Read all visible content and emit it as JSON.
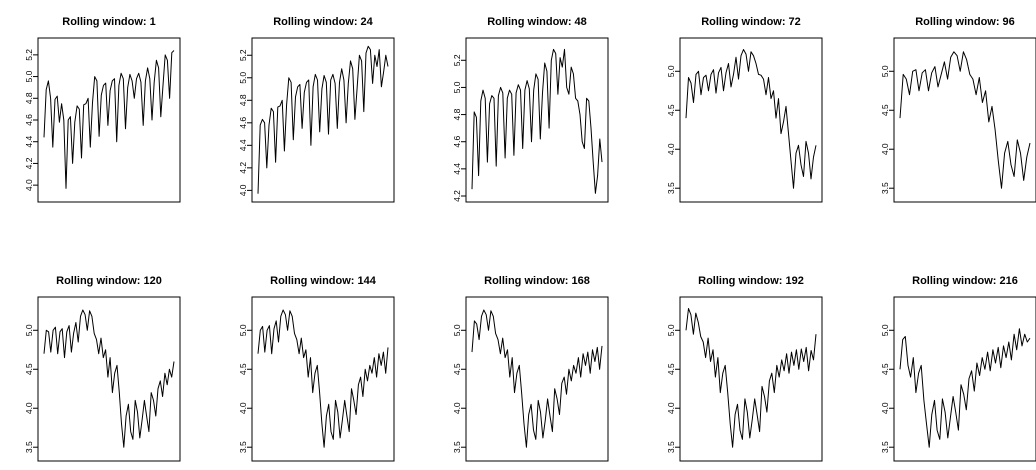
{
  "chart_data": [
    {
      "type": "line",
      "title": "Rolling window: 1",
      "ylim": [
        3.9,
        5.3
      ],
      "y_ticks": [
        4.0,
        4.2,
        4.4,
        4.6,
        4.8,
        5.0,
        5.2
      ],
      "y_tick_labels": [
        "4.0",
        "4.2",
        "4.4",
        "4.6",
        "4.8",
        "5.0",
        "5.2"
      ],
      "grid": false,
      "values": [
        4.44,
        4.88,
        4.96,
        4.8,
        4.35,
        4.79,
        4.82,
        4.58,
        4.75,
        4.6,
        3.97,
        4.6,
        4.63,
        4.2,
        4.58,
        4.73,
        4.7,
        4.25,
        4.74,
        4.75,
        4.8,
        4.35,
        4.76,
        5.0,
        4.96,
        4.45,
        4.83,
        4.92,
        4.94,
        4.55,
        4.87,
        4.96,
        4.98,
        4.4,
        4.92,
        5.03,
        4.98,
        4.52,
        4.9,
        5.02,
        4.96,
        4.8,
        4.98,
        5.03,
        4.95,
        4.55,
        4.96,
        5.08,
        4.98,
        4.6,
        4.95,
        5.15,
        5.08,
        4.63,
        4.92,
        5.2,
        5.15,
        4.8,
        5.22,
        5.24
      ]
    },
    {
      "type": "line",
      "title": "Rolling window: 24",
      "ylim": [
        3.95,
        5.3
      ],
      "y_ticks": [
        4.0,
        4.2,
        4.4,
        4.6,
        4.8,
        5.0,
        5.2
      ],
      "y_tick_labels": [
        "4.0",
        "4.2",
        "4.4",
        "4.6",
        "4.8",
        "5.0",
        "5.2"
      ],
      "grid": false,
      "values": [
        3.97,
        4.58,
        4.63,
        4.6,
        4.2,
        4.58,
        4.73,
        4.7,
        4.25,
        4.74,
        4.75,
        4.8,
        4.35,
        4.76,
        5.0,
        4.96,
        4.45,
        4.83,
        4.92,
        4.94,
        4.55,
        4.87,
        4.96,
        4.98,
        4.4,
        4.92,
        5.03,
        4.98,
        4.52,
        4.9,
        5.02,
        4.96,
        4.5,
        4.98,
        5.03,
        4.95,
        4.55,
        4.96,
        5.08,
        4.98,
        4.6,
        4.95,
        5.15,
        5.08,
        4.63,
        4.92,
        5.2,
        5.15,
        4.7,
        5.22,
        5.28,
        5.25,
        4.95,
        5.2,
        5.1,
        5.25,
        4.92,
        5.05,
        5.2,
        5.1
      ]
    },
    {
      "type": "line",
      "title": "Rolling window: 48",
      "ylim": [
        4.2,
        5.32
      ],
      "y_ticks": [
        4.2,
        4.4,
        4.6,
        4.8,
        5.0,
        5.2
      ],
      "y_tick_labels": [
        "4.2",
        "4.4",
        "4.6",
        "4.8",
        "5.0",
        "5.2"
      ],
      "grid": false,
      "values": [
        4.25,
        4.82,
        4.78,
        4.35,
        4.9,
        4.98,
        4.92,
        4.45,
        4.88,
        4.94,
        4.92,
        4.42,
        4.94,
        5.0,
        4.96,
        4.48,
        4.92,
        4.98,
        4.95,
        4.5,
        4.96,
        5.02,
        4.98,
        4.55,
        4.98,
        5.05,
        4.99,
        4.6,
        4.98,
        5.1,
        5.06,
        4.62,
        4.96,
        5.18,
        5.12,
        4.7,
        5.2,
        5.28,
        5.25,
        4.95,
        5.22,
        5.15,
        5.28,
        5.0,
        4.95,
        5.15,
        5.1,
        4.92,
        4.9,
        4.8,
        4.6,
        4.55,
        4.92,
        4.9,
        4.7,
        4.45,
        4.22,
        4.35,
        4.62,
        4.45
      ]
    },
    {
      "type": "line",
      "title": "Rolling window: 72",
      "ylim": [
        3.4,
        5.35
      ],
      "y_ticks": [
        3.5,
        4.0,
        4.5,
        5.0
      ],
      "y_tick_labels": [
        "3.5",
        "4.0",
        "4.5",
        "5.0"
      ],
      "grid": false,
      "values": [
        4.4,
        4.92,
        4.85,
        4.6,
        4.96,
        5.0,
        4.7,
        4.92,
        4.95,
        4.75,
        4.96,
        5.02,
        4.72,
        4.98,
        5.05,
        4.75,
        4.98,
        5.1,
        4.8,
        4.96,
        5.18,
        4.9,
        5.2,
        5.28,
        5.22,
        5.0,
        5.25,
        5.2,
        5.1,
        4.96,
        4.95,
        4.9,
        4.7,
        4.92,
        4.65,
        4.75,
        4.4,
        4.65,
        4.2,
        4.35,
        4.55,
        4.2,
        3.85,
        3.5,
        3.95,
        4.05,
        3.8,
        3.65,
        4.1,
        3.95,
        3.62,
        3.9,
        4.05
      ]
    },
    {
      "type": "line",
      "title": "Rolling window: 96",
      "ylim": [
        3.4,
        5.35
      ],
      "y_ticks": [
        3.5,
        4.0,
        4.5,
        5.0
      ],
      "y_tick_labels": [
        "3.5",
        "4.0",
        "4.5",
        "5.0"
      ],
      "grid": false,
      "values": [
        4.4,
        4.96,
        4.9,
        4.7,
        5.0,
        5.02,
        4.75,
        4.98,
        5.02,
        4.75,
        4.98,
        5.06,
        4.8,
        4.96,
        5.12,
        4.9,
        5.18,
        5.25,
        5.2,
        5.0,
        5.25,
        5.15,
        4.96,
        4.9,
        4.7,
        4.92,
        4.6,
        4.75,
        4.35,
        4.55,
        4.25,
        3.85,
        3.5,
        3.95,
        4.1,
        3.8,
        3.65,
        4.12,
        3.95,
        3.6,
        3.9,
        4.08
      ]
    },
    {
      "type": "line",
      "title": "Rolling window: 120",
      "ylim": [
        3.4,
        5.35
      ],
      "y_ticks": [
        3.5,
        4.0,
        4.5,
        5.0
      ],
      "y_tick_labels": [
        "3.5",
        "4.0",
        "4.5",
        "5.0"
      ],
      "grid": false,
      "values": [
        4.7,
        5.0,
        4.98,
        4.72,
        5.0,
        5.04,
        4.7,
        4.98,
        5.02,
        4.65,
        4.98,
        5.06,
        4.72,
        4.96,
        5.1,
        4.85,
        5.18,
        5.26,
        5.2,
        5.0,
        5.25,
        5.18,
        4.96,
        4.88,
        4.7,
        4.9,
        4.65,
        4.75,
        4.4,
        4.65,
        4.2,
        4.45,
        4.55,
        4.2,
        3.8,
        3.5,
        3.9,
        4.05,
        3.7,
        3.6,
        4.1,
        3.95,
        3.62,
        3.85,
        4.1,
        3.9,
        3.7,
        4.2,
        4.1,
        3.9,
        4.25,
        4.35,
        4.15,
        4.45,
        4.3,
        4.5,
        4.4,
        4.6
      ]
    },
    {
      "type": "line",
      "title": "Rolling window: 144",
      "ylim": [
        3.4,
        5.35
      ],
      "y_ticks": [
        3.5,
        4.0,
        4.5,
        5.0
      ],
      "y_tick_labels": [
        "3.5",
        "4.0",
        "4.5",
        "5.0"
      ],
      "grid": false,
      "values": [
        4.7,
        5.0,
        5.05,
        4.72,
        5.0,
        5.06,
        4.7,
        5.02,
        5.12,
        4.85,
        5.18,
        5.26,
        5.2,
        5.0,
        5.25,
        5.18,
        4.96,
        4.88,
        4.7,
        4.9,
        4.65,
        4.75,
        4.4,
        4.65,
        4.2,
        4.45,
        4.55,
        4.2,
        3.8,
        3.5,
        3.9,
        4.05,
        3.7,
        3.6,
        4.1,
        3.95,
        3.62,
        3.85,
        4.1,
        3.9,
        3.7,
        4.25,
        4.1,
        3.92,
        4.3,
        4.4,
        4.15,
        4.5,
        4.35,
        4.55,
        4.45,
        4.65,
        4.4,
        4.7,
        4.55,
        4.72,
        4.45,
        4.78
      ]
    },
    {
      "type": "line",
      "title": "Rolling window: 168",
      "ylim": [
        3.4,
        5.35
      ],
      "y_ticks": [
        3.5,
        4.0,
        4.5,
        5.0
      ],
      "y_tick_labels": [
        "3.5",
        "4.0",
        "4.5",
        "5.0"
      ],
      "grid": false,
      "values": [
        4.72,
        5.12,
        5.08,
        4.88,
        5.18,
        5.26,
        5.2,
        5.0,
        5.25,
        5.18,
        4.96,
        4.88,
        4.7,
        4.9,
        4.65,
        4.75,
        4.4,
        4.65,
        4.2,
        4.45,
        4.55,
        4.2,
        3.8,
        3.5,
        3.92,
        4.05,
        3.72,
        3.6,
        4.1,
        3.95,
        3.62,
        3.85,
        4.12,
        3.9,
        3.7,
        4.25,
        4.12,
        3.92,
        4.32,
        4.4,
        4.18,
        4.5,
        4.35,
        4.55,
        4.45,
        4.65,
        4.4,
        4.7,
        4.55,
        4.72,
        4.45,
        4.75,
        4.6,
        4.78,
        4.5,
        4.8
      ]
    },
    {
      "type": "line",
      "title": "Rolling window: 192",
      "ylim": [
        3.4,
        5.35
      ],
      "y_ticks": [
        3.5,
        4.0,
        4.5,
        5.0
      ],
      "y_tick_labels": [
        "3.5",
        "4.0",
        "4.5",
        "5.0"
      ],
      "grid": false,
      "values": [
        5.0,
        5.28,
        5.2,
        4.95,
        5.22,
        5.1,
        4.92,
        4.85,
        4.65,
        4.9,
        4.6,
        4.75,
        4.4,
        4.65,
        4.2,
        4.45,
        4.55,
        4.2,
        3.8,
        3.5,
        3.92,
        4.05,
        3.72,
        3.6,
        4.12,
        3.95,
        3.62,
        3.85,
        4.12,
        3.92,
        3.7,
        4.28,
        4.15,
        3.95,
        4.35,
        4.45,
        4.2,
        4.55,
        4.4,
        4.62,
        4.48,
        4.7,
        4.45,
        4.72,
        4.55,
        4.75,
        4.5,
        4.76,
        4.6,
        4.78,
        4.48,
        4.74,
        4.62,
        4.95
      ]
    },
    {
      "type": "line",
      "title": "Rolling window: 216",
      "ylim": [
        3.4,
        5.35
      ],
      "y_ticks": [
        3.5,
        4.0,
        4.5,
        5.0
      ],
      "y_tick_labels": [
        "3.5",
        "4.0",
        "4.5",
        "5.0"
      ],
      "grid": false,
      "values": [
        4.5,
        4.88,
        4.92,
        4.55,
        4.4,
        4.65,
        4.2,
        4.45,
        4.55,
        4.1,
        3.8,
        3.5,
        3.92,
        4.1,
        3.72,
        3.6,
        4.12,
        3.95,
        3.62,
        3.88,
        4.15,
        3.95,
        3.72,
        4.3,
        4.18,
        3.98,
        4.38,
        4.48,
        4.22,
        4.58,
        4.42,
        4.65,
        4.5,
        4.72,
        4.48,
        4.75,
        4.58,
        4.78,
        4.52,
        4.8,
        4.65,
        4.85,
        4.62,
        4.95,
        4.75,
        5.02,
        4.8,
        4.95,
        4.85,
        4.9
      ]
    }
  ]
}
